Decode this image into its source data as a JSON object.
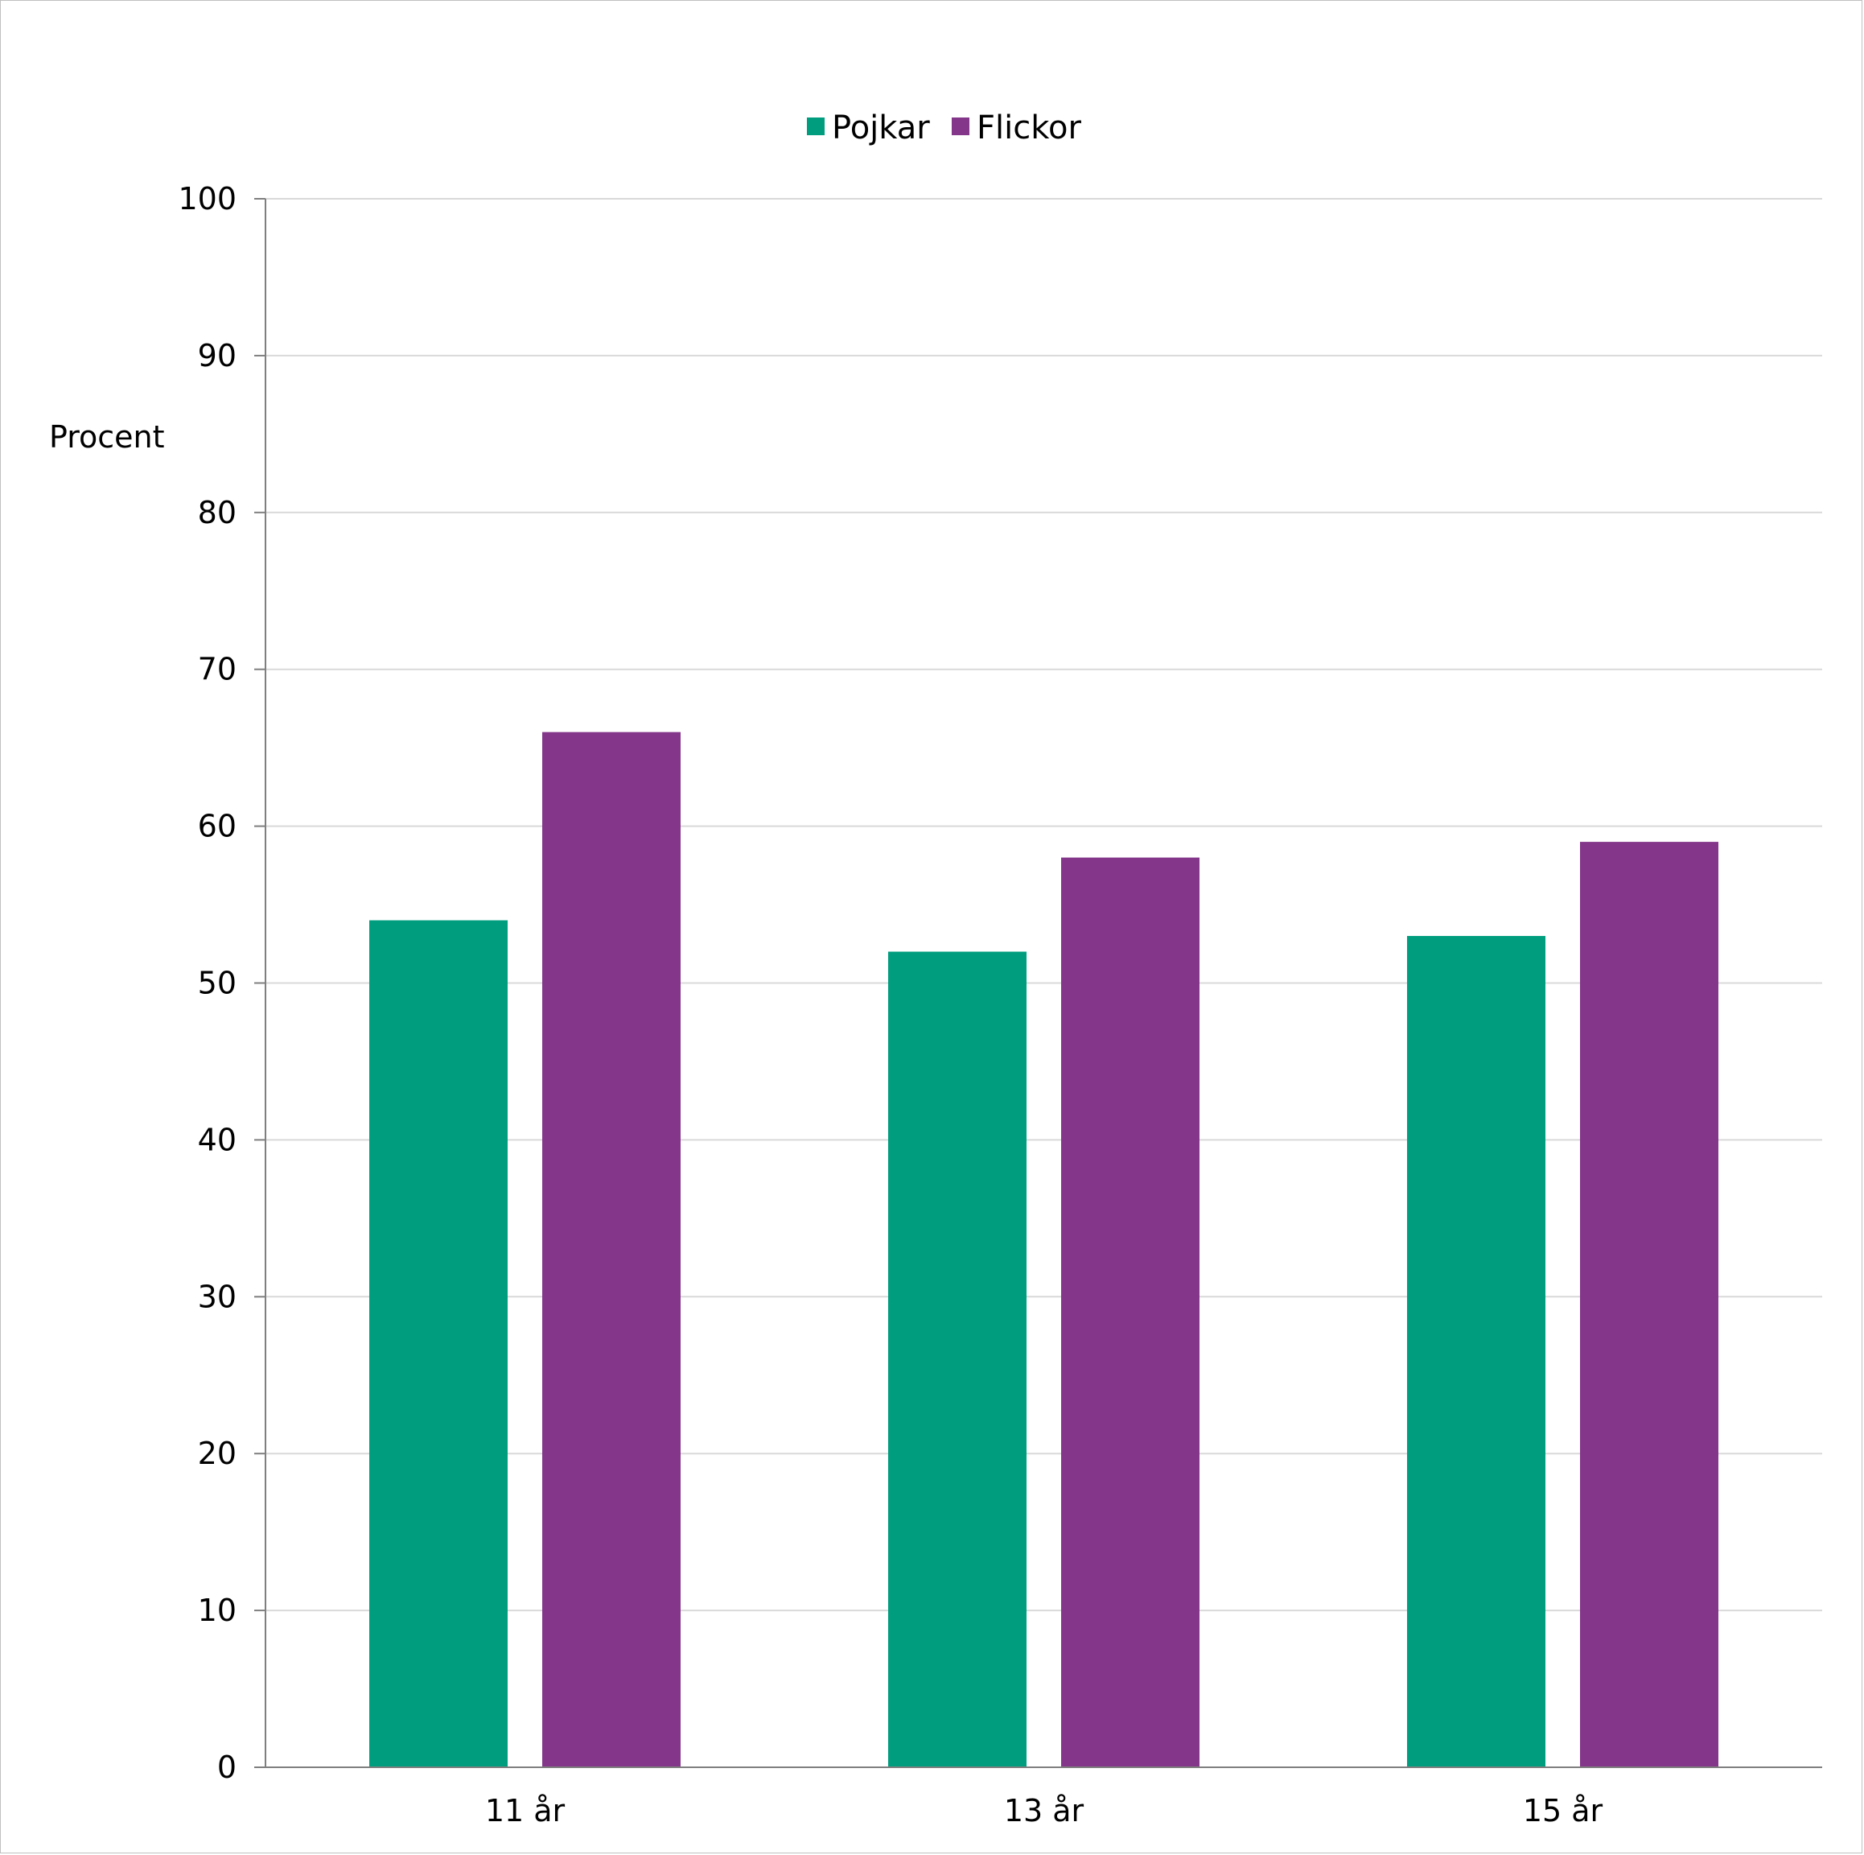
{
  "chart_data": {
    "type": "bar",
    "title": "",
    "ylabel": "Procent",
    "xlabel": "",
    "categories": [
      "11 år",
      "13 år",
      "15 år"
    ],
    "series": [
      {
        "name": "Pojkar",
        "color": "#009e7e",
        "values": [
          54,
          52,
          53
        ]
      },
      {
        "name": "Flickor",
        "color": "#84378a",
        "values": [
          66,
          58,
          59
        ]
      }
    ],
    "ylim": [
      0,
      100
    ],
    "yticks": [
      0,
      10,
      20,
      30,
      40,
      50,
      60,
      70,
      80,
      90,
      100
    ],
    "grid": true,
    "legend_position": "top-center"
  },
  "colors": {
    "gridline": "#d9d9d9",
    "axis": "#7f7f7f"
  }
}
